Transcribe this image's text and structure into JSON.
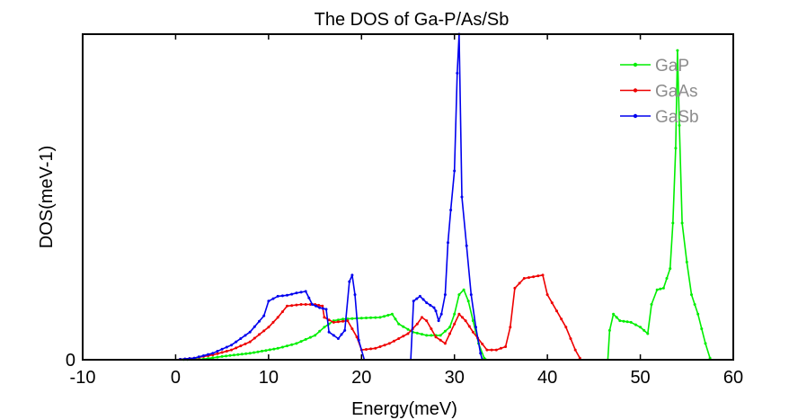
{
  "chart_data": {
    "type": "line",
    "title": "The DOS of Ga-P/As/Sb",
    "xlabel": "Energy(meV)",
    "ylabel": "DOS(meV-1)",
    "xlim": [
      -10,
      60
    ],
    "ylim": [
      0,
      1
    ],
    "x_ticks": [
      -10,
      0,
      10,
      20,
      30,
      40,
      50,
      60
    ],
    "y_ticks": [
      0
    ],
    "x_tick_labels": [
      "-10",
      "0",
      "10",
      "20",
      "30",
      "40",
      "50",
      "60"
    ],
    "y_tick_labels": [
      "0"
    ],
    "grid": false,
    "legend_position": "top-right",
    "series": [
      {
        "name": "GaP",
        "color": "#00ee00",
        "points": [
          [
            0,
            0
          ],
          [
            3,
            0.002
          ],
          [
            5,
            0.01
          ],
          [
            8,
            0.02
          ],
          [
            11,
            0.035
          ],
          [
            13,
            0.05
          ],
          [
            15,
            0.075
          ],
          [
            16,
            0.1
          ],
          [
            17,
            0.12
          ],
          [
            18,
            0.125
          ],
          [
            20,
            0.128
          ],
          [
            22,
            0.13
          ],
          [
            23.3,
            0.14
          ],
          [
            24,
            0.11
          ],
          [
            25.5,
            0.085
          ],
          [
            27,
            0.075
          ],
          [
            28.5,
            0.075
          ],
          [
            29.5,
            0.1
          ],
          [
            30,
            0.14
          ],
          [
            30.5,
            0.2
          ],
          [
            31,
            0.215
          ],
          [
            31.5,
            0.18
          ],
          [
            32,
            0.12
          ],
          [
            32.6,
            0.05
          ],
          [
            33.2,
            0.005
          ],
          [
            33.5,
            0
          ],
          [
            46.5,
            0
          ],
          [
            46.7,
            0.09
          ],
          [
            47.1,
            0.14
          ],
          [
            47.8,
            0.12
          ],
          [
            49,
            0.115
          ],
          [
            50,
            0.1
          ],
          [
            50.8,
            0.08
          ],
          [
            51.2,
            0.17
          ],
          [
            51.8,
            0.215
          ],
          [
            52.5,
            0.22
          ],
          [
            53.2,
            0.28
          ],
          [
            53.5,
            0.42
          ],
          [
            53.8,
            0.65
          ],
          [
            54,
            0.95
          ],
          [
            54.2,
            0.72
          ],
          [
            54.5,
            0.42
          ],
          [
            55,
            0.3
          ],
          [
            55.5,
            0.2
          ],
          [
            56.2,
            0.14
          ],
          [
            57,
            0.05
          ],
          [
            57.5,
            0.005
          ]
        ]
      },
      {
        "name": "GaAs",
        "color": "#ee0000",
        "points": [
          [
            0,
            0
          ],
          [
            2,
            0.005
          ],
          [
            4,
            0.015
          ],
          [
            6,
            0.03
          ],
          [
            8,
            0.055
          ],
          [
            10,
            0.1
          ],
          [
            11,
            0.13
          ],
          [
            12,
            0.165
          ],
          [
            13.5,
            0.17
          ],
          [
            15,
            0.17
          ],
          [
            15.8,
            0.165
          ],
          [
            16,
            0.13
          ],
          [
            17,
            0.115
          ],
          [
            18.5,
            0.12
          ],
          [
            19.5,
            0.07
          ],
          [
            20,
            0.03
          ],
          [
            21.5,
            0.035
          ],
          [
            23,
            0.05
          ],
          [
            25,
            0.08
          ],
          [
            26,
            0.11
          ],
          [
            26.5,
            0.13
          ],
          [
            27,
            0.12
          ],
          [
            28,
            0.07
          ],
          [
            29,
            0.05
          ],
          [
            30,
            0.11
          ],
          [
            30.5,
            0.14
          ],
          [
            31.2,
            0.12
          ],
          [
            32,
            0.085
          ],
          [
            33.5,
            0.03
          ],
          [
            34.5,
            0.03
          ],
          [
            35.5,
            0.04
          ],
          [
            36,
            0.1
          ],
          [
            36.5,
            0.22
          ],
          [
            37.5,
            0.25
          ],
          [
            38.5,
            0.255
          ],
          [
            39.5,
            0.26
          ],
          [
            40,
            0.2
          ],
          [
            41,
            0.15
          ],
          [
            42,
            0.1
          ],
          [
            43,
            0.03
          ],
          [
            43.5,
            0.005
          ]
        ]
      },
      {
        "name": "GaSb",
        "color": "#0000ee",
        "points": [
          [
            0,
            0
          ],
          [
            2,
            0.005
          ],
          [
            4,
            0.02
          ],
          [
            6,
            0.045
          ],
          [
            8,
            0.085
          ],
          [
            9.5,
            0.135
          ],
          [
            10,
            0.18
          ],
          [
            11,
            0.195
          ],
          [
            12,
            0.198
          ],
          [
            13,
            0.205
          ],
          [
            14,
            0.21
          ],
          [
            14.7,
            0.17
          ],
          [
            15.5,
            0.16
          ],
          [
            16.2,
            0.155
          ],
          [
            16.5,
            0.085
          ],
          [
            17.5,
            0.065
          ],
          [
            18.2,
            0.09
          ],
          [
            18.7,
            0.24
          ],
          [
            19,
            0.26
          ],
          [
            19.3,
            0.2
          ],
          [
            19.7,
            0.06
          ],
          [
            20.3,
            0
          ],
          [
            25.3,
            0
          ],
          [
            25.6,
            0.18
          ],
          [
            26.3,
            0.195
          ],
          [
            27,
            0.175
          ],
          [
            27.8,
            0.16
          ],
          [
            28,
            0.15
          ],
          [
            28.3,
            0.12
          ],
          [
            28.6,
            0.14
          ],
          [
            29,
            0.2
          ],
          [
            29.3,
            0.36
          ],
          [
            29.6,
            0.46
          ],
          [
            30,
            0.58
          ],
          [
            30.3,
            0.88
          ],
          [
            30.5,
            1.0
          ],
          [
            30.8,
            0.5
          ],
          [
            31.3,
            0.35
          ],
          [
            31.8,
            0.2
          ],
          [
            32.3,
            0.1
          ],
          [
            32.8,
            0.02
          ],
          [
            33,
            0
          ]
        ]
      }
    ]
  }
}
